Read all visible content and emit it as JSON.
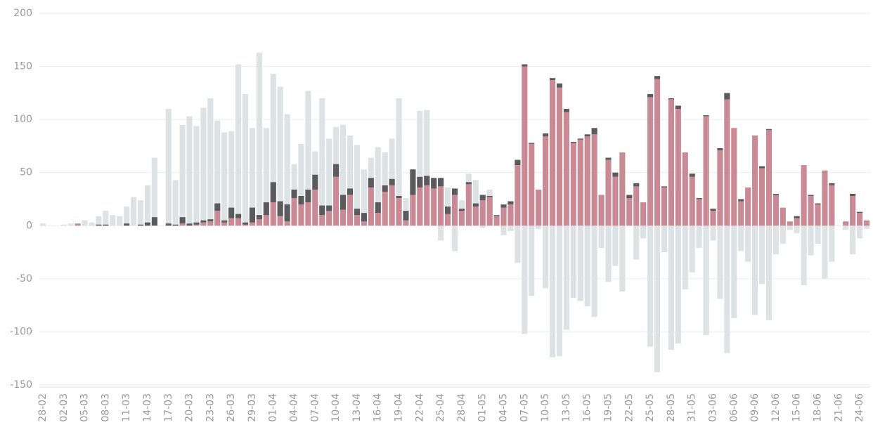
{
  "chart_data": {
    "type": "bar",
    "categories": [
      "28-02",
      null,
      null,
      "02-03",
      null,
      null,
      "05-03",
      null,
      null,
      "08-03",
      null,
      null,
      "11-03",
      null,
      null,
      "14-03",
      null,
      null,
      "17-03",
      null,
      null,
      "20-03",
      null,
      null,
      "23-03",
      null,
      null,
      "26-03",
      null,
      null,
      "29-03",
      null,
      null,
      "01-04",
      null,
      null,
      "04-04",
      null,
      null,
      "07-04",
      null,
      null,
      "10-04",
      null,
      null,
      "13-04",
      null,
      null,
      "16-04",
      null,
      null,
      "19-04",
      null,
      null,
      "22-04",
      null,
      null,
      "25-04",
      null,
      null,
      "28-04",
      null,
      null,
      "01-05",
      null,
      null,
      "04-05",
      null,
      null,
      "07-05",
      null,
      null,
      "10-05",
      null,
      null,
      "13-05",
      null,
      null,
      "16-05",
      null,
      null,
      "19-05",
      null,
      null,
      "22-05",
      null,
      null,
      "25-05",
      null,
      null,
      "28-05",
      null,
      null,
      "31-05",
      null,
      null,
      "03-06",
      null,
      null,
      "06-06",
      null,
      null,
      "09-06",
      null,
      null,
      "12-06",
      null,
      null,
      "15-06",
      null,
      null,
      "18-06",
      null,
      null,
      "21-06",
      null,
      null,
      "24-06",
      null
    ],
    "series": [
      {
        "color": "#dde3e5",
        "overlay": true,
        "values": [
          2,
          0,
          0,
          1,
          2,
          2,
          5,
          3,
          9,
          14,
          10,
          9,
          18,
          27,
          24,
          38,
          64,
          0,
          110,
          43,
          95,
          103,
          94,
          111,
          120,
          99,
          88,
          89,
          152,
          124,
          92,
          163,
          92,
          143,
          131,
          105,
          58,
          77,
          127,
          70,
          120,
          82,
          93,
          95,
          85,
          76,
          53,
          64,
          74,
          69,
          82,
          120,
          26,
          36,
          108,
          109,
          36,
          -14,
          36,
          -24,
          24,
          49,
          43,
          -2,
          34,
          0,
          -9,
          -5,
          -35,
          -102,
          -66,
          -3,
          -59,
          -124,
          -123,
          -98,
          -68,
          -71,
          -76,
          -86,
          -21,
          -53,
          -38,
          -62,
          0,
          -32,
          -12,
          -114,
          -138,
          -25,
          -117,
          -111,
          -60,
          -44,
          -21,
          -103,
          -14,
          -69,
          -120,
          -87,
          -24,
          -34,
          -84,
          -55,
          -89,
          -27,
          -17,
          -4,
          -7,
          -56,
          -28,
          -17,
          -50,
          -34,
          0,
          -4,
          -27,
          -12,
          -3
        ]
      },
      {
        "color": "#c98a96",
        "values": [
          0,
          0,
          0,
          0,
          0,
          2,
          0,
          0,
          0,
          0,
          0,
          0,
          0,
          0,
          0,
          0,
          0,
          0,
          0,
          0,
          2,
          0,
          1,
          3,
          4,
          14,
          3,
          7,
          7,
          1,
          3,
          6,
          10,
          22,
          9,
          4,
          26,
          20,
          22,
          34,
          10,
          14,
          46,
          15,
          29,
          10,
          4,
          36,
          12,
          32,
          38,
          26,
          5,
          29,
          36,
          38,
          35,
          37,
          11,
          29,
          14,
          39,
          18,
          24,
          27,
          9,
          17,
          20,
          57,
          150,
          77,
          34,
          84,
          137,
          130,
          107,
          78,
          81,
          84,
          86,
          29,
          62,
          46,
          69,
          26,
          37,
          22,
          121,
          138,
          36,
          119,
          110,
          69,
          46,
          25,
          103,
          14,
          71,
          119,
          92,
          23,
          36,
          85,
          54,
          90,
          29,
          17,
          4,
          7,
          57,
          28,
          20,
          52,
          38,
          0,
          4,
          28,
          12,
          5
        ]
      },
      {
        "color": "#5b5b5e",
        "values": [
          0,
          0,
          0,
          0,
          0,
          0,
          0,
          0,
          1,
          1,
          0,
          0,
          2,
          0,
          1,
          3,
          8,
          0,
          2,
          1,
          6,
          2,
          2,
          2,
          2,
          7,
          2,
          10,
          4,
          2,
          14,
          4,
          12,
          19,
          14,
          16,
          8,
          8,
          12,
          14,
          9,
          5,
          12,
          14,
          6,
          6,
          8,
          9,
          10,
          6,
          6,
          2,
          9,
          24,
          10,
          9,
          10,
          8,
          7,
          6,
          2,
          2,
          3,
          5,
          1,
          1,
          3,
          3,
          5,
          2,
          1,
          0,
          3,
          2,
          4,
          3,
          1,
          1,
          2,
          6,
          0,
          2,
          4,
          0,
          3,
          3,
          0,
          3,
          3,
          1,
          1,
          3,
          0,
          3,
          1,
          1,
          2,
          2,
          6,
          0,
          2,
          0,
          0,
          2,
          1,
          1,
          0,
          0,
          2,
          0,
          1,
          1,
          0,
          2,
          0,
          0,
          2,
          1,
          0
        ]
      }
    ],
    "ylim": [
      -150,
      200
    ],
    "yticks": [
      -150,
      -100,
      -50,
      0,
      50,
      100,
      150,
      200
    ],
    "grid": true
  }
}
